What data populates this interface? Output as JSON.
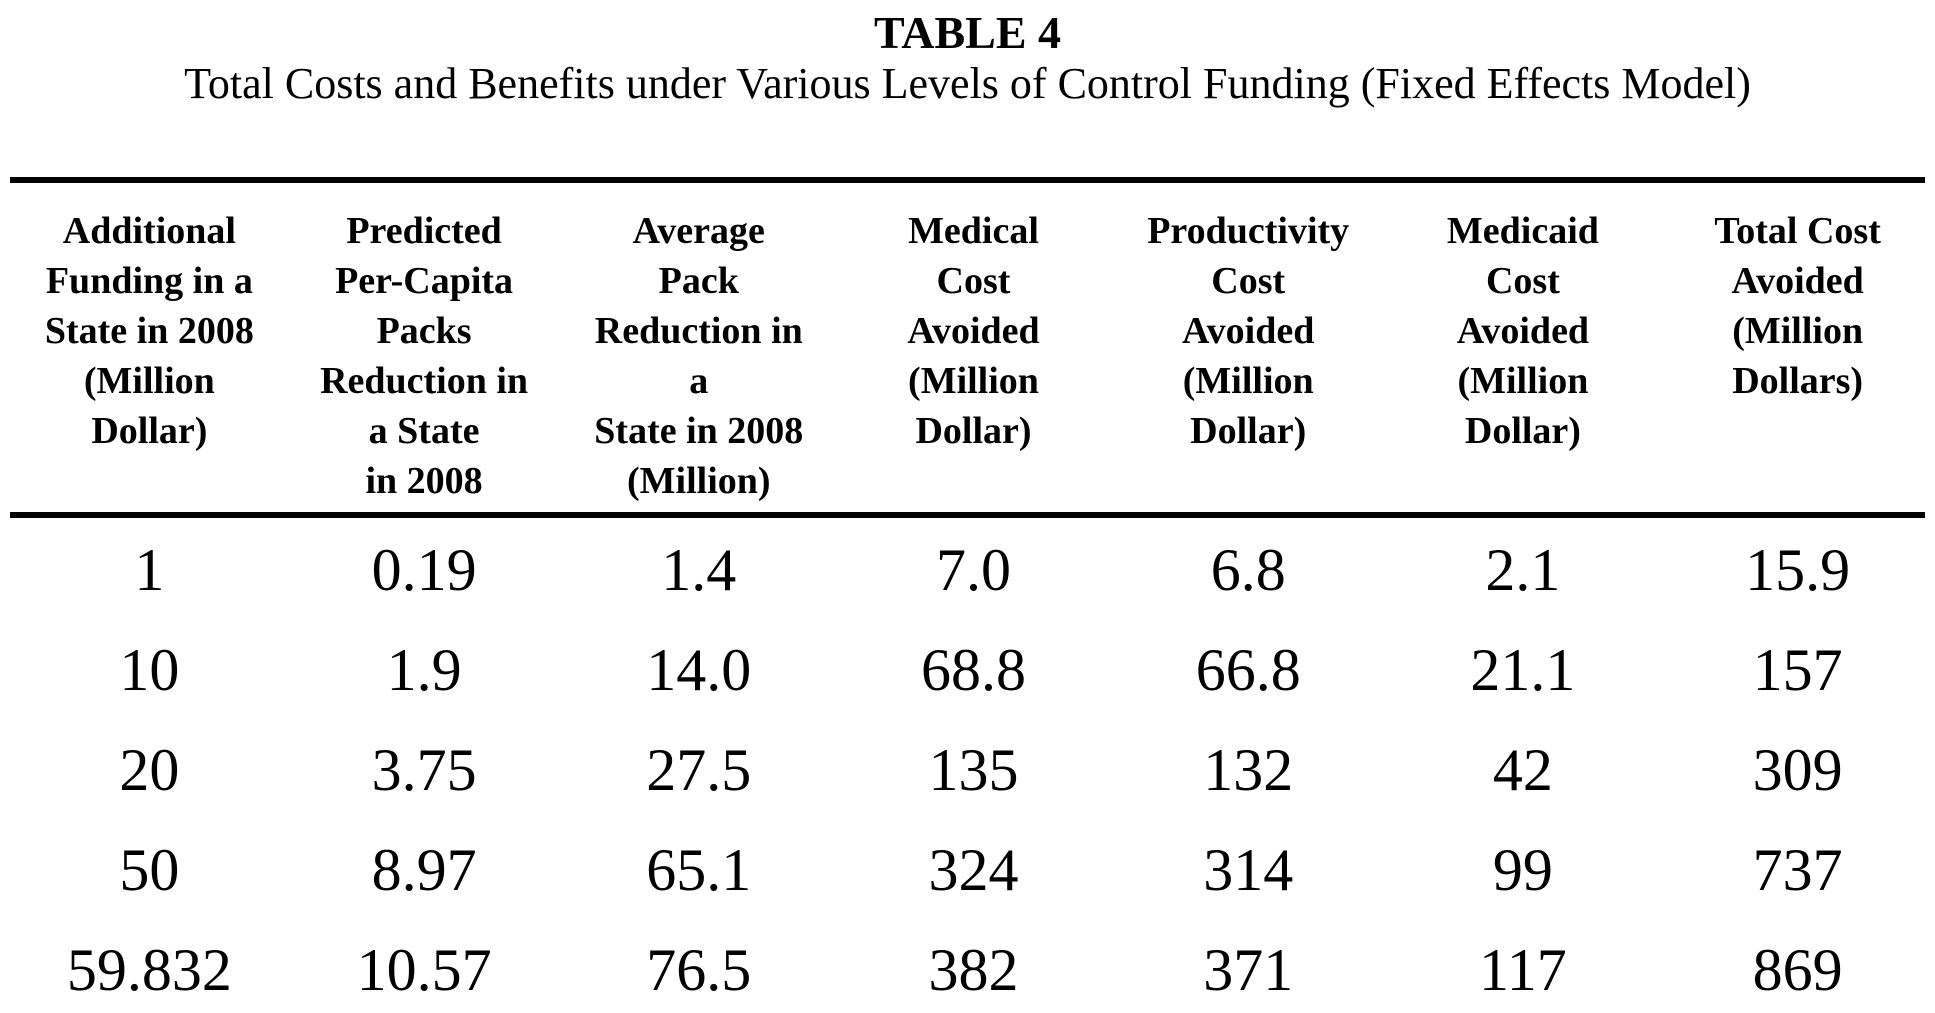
{
  "page": {
    "title": "TABLE 4",
    "subtitle": "Total Costs and Benefits under Various Levels of Control Funding (Fixed Effects Model)"
  },
  "colors": {
    "text": "#000000",
    "background": "#ffffff",
    "rule": "#000000"
  },
  "table": {
    "columns": [
      "Additional\nFunding in a\nState in 2008\n(Million\nDollar)",
      "Predicted\nPer-Capita\nPacks\nReduction in\na State\nin 2008",
      "Average\nPack\nReduction in\na\nState in 2008\n(Million)",
      "Medical\nCost\nAvoided\n(Million\nDollar)",
      "Productivity\nCost\nAvoided\n(Million\nDollar)",
      "Medicaid\nCost\nAvoided\n(Million\nDollar)",
      "Total Cost\nAvoided\n(Million\nDollars)"
    ],
    "rows": [
      [
        "1",
        "0.19",
        "1.4",
        "7.0",
        "6.8",
        "2.1",
        "15.9"
      ],
      [
        "10",
        "1.9",
        "14.0",
        "68.8",
        "66.8",
        "21.1",
        "157"
      ],
      [
        "20",
        "3.75",
        "27.5",
        "135",
        "132",
        "42",
        "309"
      ],
      [
        "50",
        "8.97",
        "65.1",
        "324",
        "314",
        "99",
        "737"
      ],
      [
        "59.832",
        "10.57",
        "76.5",
        "382",
        "371",
        "117",
        "869"
      ]
    ]
  }
}
